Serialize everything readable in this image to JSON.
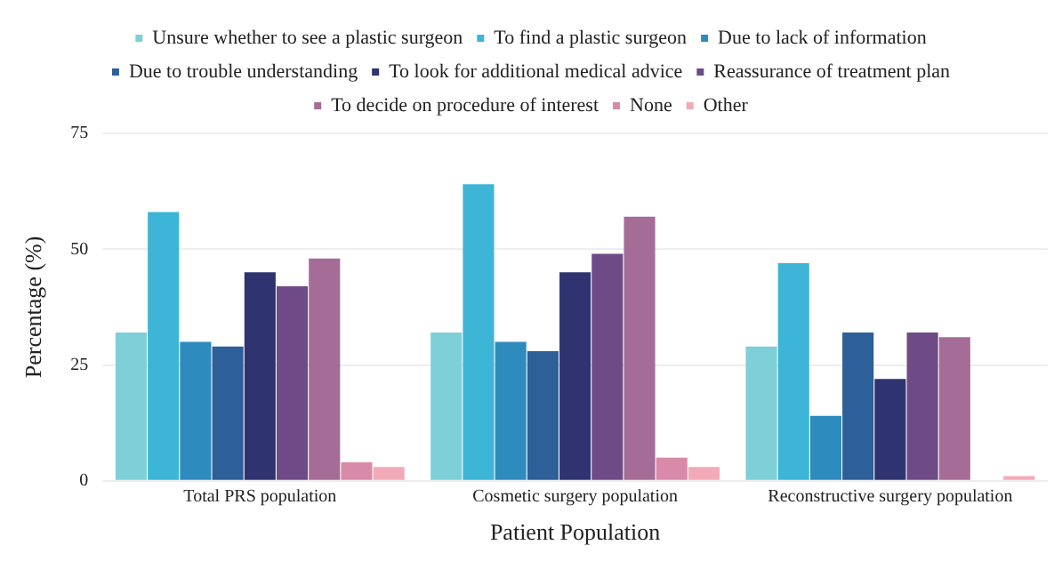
{
  "chart_data": {
    "type": "bar",
    "xlabel": "Patient Population",
    "ylabel": "Percentage (%)",
    "categories": [
      "Total PRS population",
      "Cosmetic surgery population",
      "Reconstructive surgery population"
    ],
    "series": [
      {
        "name": "Unsure whether to see a plastic surgeon",
        "color": "#7fcfd9",
        "values": [
          32,
          32,
          29
        ]
      },
      {
        "name": "To find a plastic surgeon",
        "color": "#3db5d6",
        "values": [
          58,
          64,
          47
        ]
      },
      {
        "name": "Due to lack of information",
        "color": "#2e8bbd",
        "values": [
          30,
          30,
          14
        ]
      },
      {
        "name": "Due to trouble understanding",
        "color": "#2d5f99",
        "values": [
          29,
          28,
          32
        ]
      },
      {
        "name": "To look for additional medical advice",
        "color": "#2f3470",
        "values": [
          45,
          45,
          22
        ]
      },
      {
        "name": "Reassurance of treatment plan",
        "color": "#6e4b86",
        "values": [
          42,
          49,
          32
        ]
      },
      {
        "name": "To decide on procedure of interest",
        "color": "#a56c98",
        "values": [
          48,
          57,
          31
        ]
      },
      {
        "name": "None",
        "color": "#d98aa8",
        "values": [
          4,
          5,
          0
        ]
      },
      {
        "name": "Other",
        "color": "#f2aab8",
        "values": [
          3,
          3,
          1
        ]
      }
    ],
    "ylim": [
      0,
      75
    ],
    "yticks": [
      0,
      25,
      50,
      75
    ],
    "grid": "y",
    "legend": "top"
  }
}
